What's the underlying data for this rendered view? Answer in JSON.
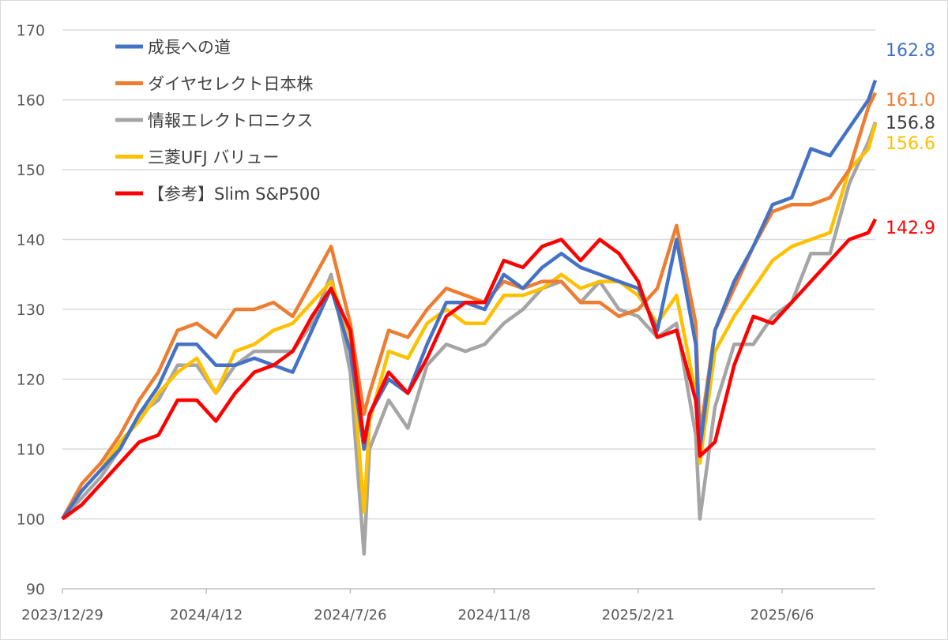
{
  "chart_data": {
    "type": "line",
    "title": "",
    "xlabel": "",
    "ylabel": "",
    "ylim": [
      90,
      170
    ],
    "yticks": [
      90,
      100,
      110,
      120,
      130,
      140,
      150,
      160,
      170
    ],
    "xlim": [
      "2023-12-29",
      "2025-08-13"
    ],
    "xtick_labels": [
      "2023/12/29",
      "2024/4/12",
      "2024/7/26",
      "2024/11/8",
      "2025/2/21",
      "2025/6/6"
    ],
    "xtick_dates": [
      "2023-12-29",
      "2024-04-12",
      "2024-07-26",
      "2024-11-08",
      "2025-02-21",
      "2025-06-06"
    ],
    "grid": "horizontal",
    "legend_position": "top-left",
    "x": [
      "2023-12-29",
      "2024-01-12",
      "2024-01-26",
      "2024-02-09",
      "2024-02-23",
      "2024-03-08",
      "2024-03-22",
      "2024-04-05",
      "2024-04-19",
      "2024-05-03",
      "2024-05-17",
      "2024-05-31",
      "2024-06-14",
      "2024-06-28",
      "2024-07-12",
      "2024-07-26",
      "2024-08-05",
      "2024-08-09",
      "2024-08-23",
      "2024-09-06",
      "2024-09-20",
      "2024-10-04",
      "2024-10-18",
      "2024-11-01",
      "2024-11-15",
      "2024-11-29",
      "2024-12-13",
      "2024-12-27",
      "2025-01-10",
      "2025-01-24",
      "2025-02-07",
      "2025-02-21",
      "2025-03-07",
      "2025-03-21",
      "2025-04-04",
      "2025-04-07",
      "2025-04-18",
      "2025-05-02",
      "2025-05-16",
      "2025-05-30",
      "2025-06-13",
      "2025-06-27",
      "2025-07-11",
      "2025-07-25",
      "2025-08-08",
      "2025-08-13"
    ],
    "series": [
      {
        "name": "成長への道",
        "color": "#4472C4",
        "end_label": "162.8",
        "end_label_color": "#4472C4",
        "values": [
          100,
          104,
          107,
          110,
          115,
          119,
          125,
          125,
          122,
          122,
          123,
          122,
          121,
          127,
          133,
          124,
          110,
          115,
          120,
          118,
          125,
          131,
          131,
          130,
          135,
          133,
          136,
          138,
          136,
          135,
          134,
          133,
          127,
          140,
          125,
          110,
          127,
          134,
          139,
          145,
          146,
          153,
          152,
          156,
          160,
          162.8
        ]
      },
      {
        "name": "ダイヤセレクト日本株",
        "color": "#ED7D31",
        "end_label": "161.0",
        "end_label_color": "#ED7D31",
        "values": [
          100,
          105,
          108,
          112,
          117,
          121,
          127,
          128,
          126,
          130,
          130,
          131,
          129,
          134,
          139,
          128,
          115,
          118,
          127,
          126,
          130,
          133,
          132,
          131,
          134,
          133,
          134,
          134,
          131,
          131,
          129,
          130,
          133,
          142,
          128,
          112,
          127,
          133,
          139,
          144,
          145,
          145,
          146,
          150,
          159,
          161.0
        ]
      },
      {
        "name": "情報エレクトロニクス",
        "color": "#A5A5A5",
        "end_label": "156.8",
        "end_label_color": "#404040",
        "values": [
          100,
          103,
          106,
          110,
          115,
          117,
          122,
          122,
          118,
          122,
          124,
          124,
          124,
          128,
          135,
          121,
          95,
          110,
          117,
          113,
          122,
          125,
          124,
          125,
          128,
          130,
          133,
          134,
          131,
          134,
          130,
          129,
          126,
          128,
          112,
          100,
          116,
          125,
          125,
          129,
          131,
          138,
          138,
          148,
          154,
          156.8
        ]
      },
      {
        "name": "三菱UFJ バリュー",
        "color": "#FFC000",
        "end_label": "156.6",
        "end_label_color": "#FFC000",
        "values": [
          100,
          104,
          107,
          111,
          114,
          118,
          121,
          123,
          118,
          124,
          125,
          127,
          128,
          131,
          134,
          126,
          101,
          114,
          124,
          123,
          128,
          130,
          128,
          128,
          132,
          132,
          133,
          135,
          133,
          134,
          134,
          132,
          128,
          132,
          118,
          108,
          124,
          129,
          133,
          137,
          139,
          140,
          141,
          150,
          153,
          156.6
        ]
      },
      {
        "name": "【参考】Slim S&P500",
        "color": "#FF0000",
        "end_label": "142.9",
        "end_label_color": "#FF0000",
        "values": [
          100,
          102,
          105,
          108,
          111,
          112,
          117,
          117,
          114,
          118,
          121,
          122,
          124,
          129,
          133,
          127,
          111,
          115,
          121,
          118,
          123,
          129,
          131,
          131,
          137,
          136,
          139,
          140,
          137,
          140,
          138,
          134,
          126,
          127,
          117,
          109,
          111,
          122,
          129,
          128,
          131,
          134,
          137,
          140,
          141,
          142.9
        ]
      }
    ]
  }
}
